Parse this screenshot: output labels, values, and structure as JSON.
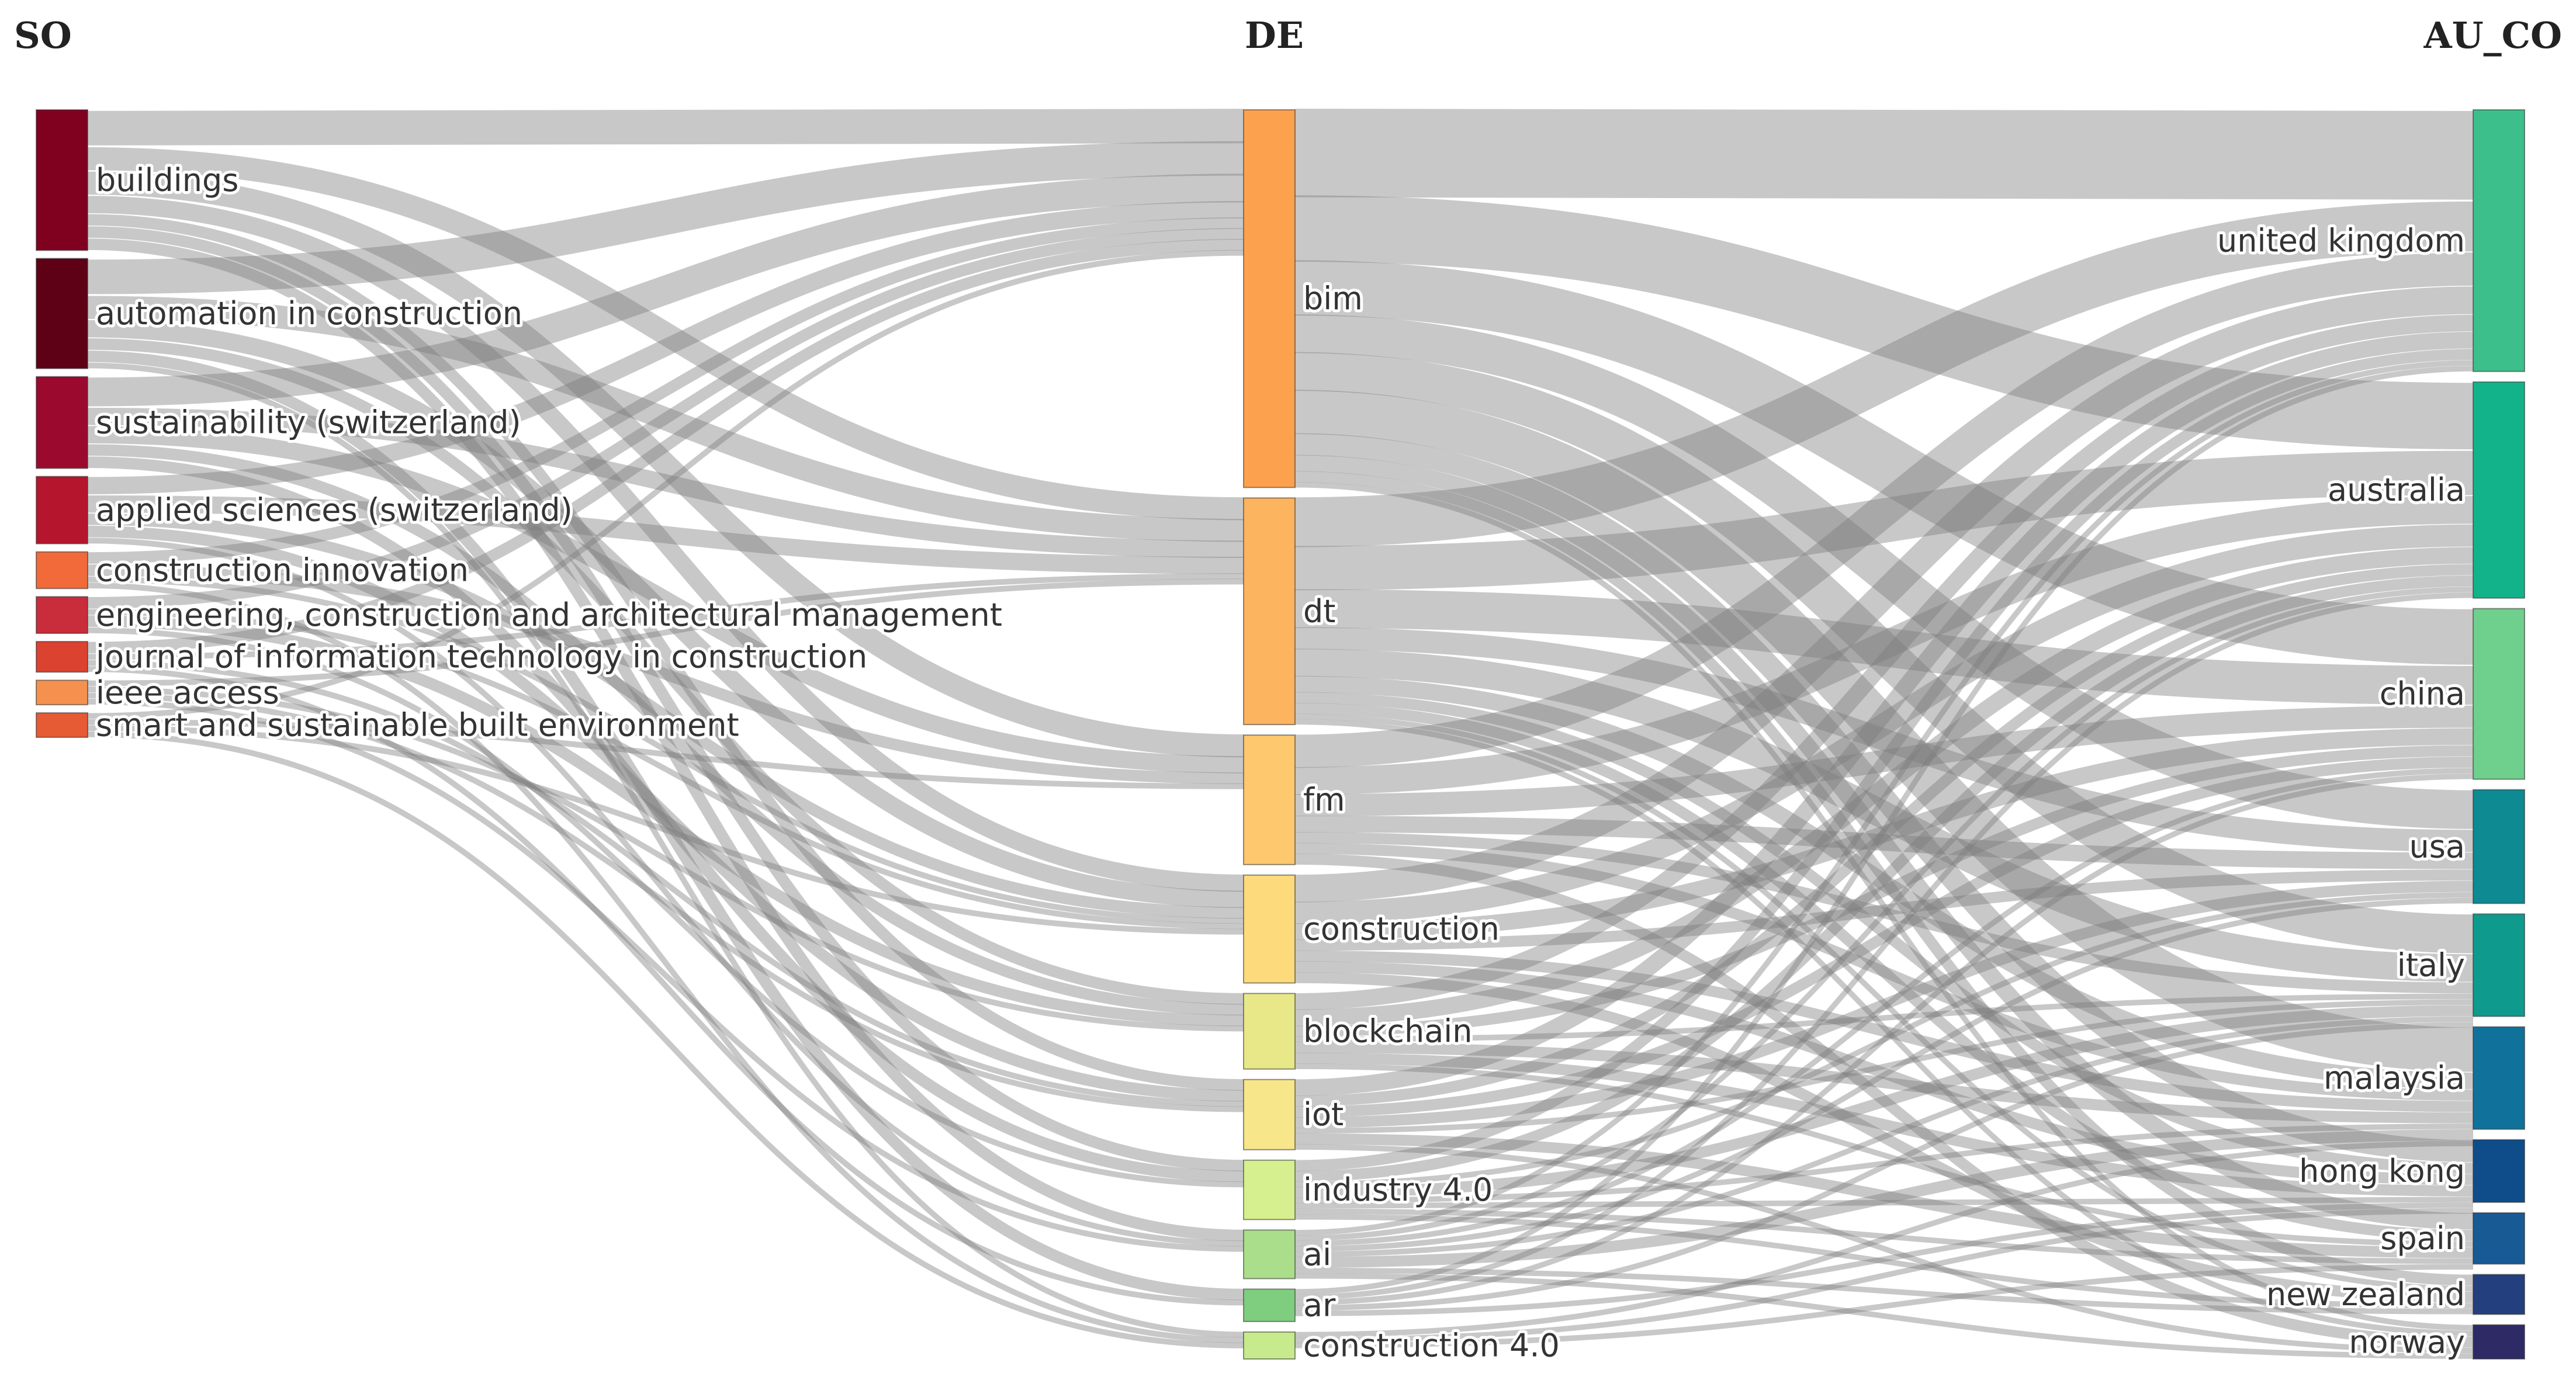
{
  "chart_data": {
    "type": "sankey",
    "columns": [
      {
        "key": "SO",
        "title": "SO",
        "label_side": "right"
      },
      {
        "key": "DE",
        "title": "DE",
        "label_side": "right"
      },
      {
        "key": "AU_CO",
        "title": "AU_CO",
        "label_side": "left"
      }
    ],
    "nodes": {
      "SO": [
        {
          "name": "buildings",
          "value": 23,
          "color": "#800020"
        },
        {
          "name": "automation in construction",
          "value": 18,
          "color": "#5e0016"
        },
        {
          "name": "sustainability (switzerland)",
          "value": 15,
          "color": "#9b0a2e"
        },
        {
          "name": "applied sciences (switzerland)",
          "value": 11,
          "color": "#b5162e"
        },
        {
          "name": "construction innovation",
          "value": 6,
          "color": "#f26a3a"
        },
        {
          "name": "engineering, construction and architectural management",
          "value": 6,
          "color": "#c92c3a"
        },
        {
          "name": "journal of information technology in construction",
          "value": 5,
          "color": "#db4230"
        },
        {
          "name": "ieee access",
          "value": 4,
          "color": "#f5914e"
        },
        {
          "name": "smart and sustainable built environment",
          "value": 4,
          "color": "#e65a34"
        }
      ],
      "DE": [
        {
          "name": "bim",
          "value": 70,
          "color": "#fca24e"
        },
        {
          "name": "dt",
          "value": 42,
          "color": "#fdb45e"
        },
        {
          "name": "fm",
          "value": 24,
          "color": "#fdc86e"
        },
        {
          "name": "construction",
          "value": 20,
          "color": "#fddb7c"
        },
        {
          "name": "blockchain",
          "value": 14,
          "color": "#e8e889"
        },
        {
          "name": "iot",
          "value": 13,
          "color": "#f7e68a"
        },
        {
          "name": "industry 4.0",
          "value": 11,
          "color": "#d7f08f"
        },
        {
          "name": "ai",
          "value": 9,
          "color": "#abde8b"
        },
        {
          "name": "ar",
          "value": 6,
          "color": "#7fce7f"
        },
        {
          "name": "construction 4.0",
          "value": 5,
          "color": "#c6ea8c"
        }
      ],
      "AU_CO": [
        {
          "name": "united kingdom",
          "value": 46,
          "color": "#3cbf8a"
        },
        {
          "name": "australia",
          "value": 38,
          "color": "#12b38a"
        },
        {
          "name": "china",
          "value": 30,
          "color": "#6fcf8c"
        },
        {
          "name": "usa",
          "value": 20,
          "color": "#0d8a92"
        },
        {
          "name": "italy",
          "value": 18,
          "color": "#0f9a8e"
        },
        {
          "name": "malaysia",
          "value": 18,
          "color": "#10729a"
        },
        {
          "name": "hong kong",
          "value": 11,
          "color": "#0e4d8a"
        },
        {
          "name": "spain",
          "value": 9,
          "color": "#175a94"
        },
        {
          "name": "new zealand",
          "value": 7,
          "color": "#243f7d"
        },
        {
          "name": "norway",
          "value": 6,
          "color": "#2d2a66"
        }
      ]
    },
    "links": [
      {
        "source": "buildings",
        "target": "bim",
        "value": 6
      },
      {
        "source": "buildings",
        "target": "dt",
        "value": 4
      },
      {
        "source": "buildings",
        "target": "fm",
        "value": 4
      },
      {
        "source": "buildings",
        "target": "construction",
        "value": 3
      },
      {
        "source": "buildings",
        "target": "iot",
        "value": 2
      },
      {
        "source": "buildings",
        "target": "industry 4.0",
        "value": 2
      },
      {
        "source": "buildings",
        "target": "ai",
        "value": 2
      },
      {
        "source": "automation in construction",
        "target": "bim",
        "value": 6
      },
      {
        "source": "automation in construction",
        "target": "dt",
        "value": 4
      },
      {
        "source": "automation in construction",
        "target": "construction",
        "value": 3
      },
      {
        "source": "automation in construction",
        "target": "blockchain",
        "value": 2
      },
      {
        "source": "automation in construction",
        "target": "ar",
        "value": 2
      },
      {
        "source": "automation in construction",
        "target": "construction 4.0",
        "value": 1
      },
      {
        "source": "sustainability (switzerland)",
        "target": "bim",
        "value": 5
      },
      {
        "source": "sustainability (switzerland)",
        "target": "dt",
        "value": 3
      },
      {
        "source": "sustainability (switzerland)",
        "target": "fm",
        "value": 3
      },
      {
        "source": "sustainability (switzerland)",
        "target": "blockchain",
        "value": 2
      },
      {
        "source": "sustainability (switzerland)",
        "target": "industry 4.0",
        "value": 2
      },
      {
        "source": "applied sciences (switzerland)",
        "target": "bim",
        "value": 3
      },
      {
        "source": "applied sciences (switzerland)",
        "target": "dt",
        "value": 3
      },
      {
        "source": "applied sciences (switzerland)",
        "target": "construction",
        "value": 2
      },
      {
        "source": "applied sciences (switzerland)",
        "target": "iot",
        "value": 2
      },
      {
        "source": "applied sciences (switzerland)",
        "target": "ai",
        "value": 1
      },
      {
        "source": "construction innovation",
        "target": "bim",
        "value": 2
      },
      {
        "source": "construction innovation",
        "target": "fm",
        "value": 2
      },
      {
        "source": "construction innovation",
        "target": "construction",
        "value": 1
      },
      {
        "source": "construction innovation",
        "target": "construction 4.0",
        "value": 1
      },
      {
        "source": "engineering, construction and architectural management",
        "target": "bim",
        "value": 2
      },
      {
        "source": "engineering, construction and architectural management",
        "target": "blockchain",
        "value": 2
      },
      {
        "source": "engineering, construction and architectural management",
        "target": "construction",
        "value": 1
      },
      {
        "source": "engineering, construction and architectural management",
        "target": "industry 4.0",
        "value": 1
      },
      {
        "source": "journal of information technology in construction",
        "target": "bim",
        "value": 2
      },
      {
        "source": "journal of information technology in construction",
        "target": "dt",
        "value": 1
      },
      {
        "source": "journal of information technology in construction",
        "target": "iot",
        "value": 1
      },
      {
        "source": "journal of information technology in construction",
        "target": "ar",
        "value": 1
      },
      {
        "source": "ieee access",
        "target": "dt",
        "value": 1
      },
      {
        "source": "ieee access",
        "target": "blockchain",
        "value": 1
      },
      {
        "source": "ieee access",
        "target": "iot",
        "value": 1
      },
      {
        "source": "ieee access",
        "target": "ai",
        "value": 1
      },
      {
        "source": "smart and sustainable built environment",
        "target": "bim",
        "value": 1
      },
      {
        "source": "smart and sustainable built environment",
        "target": "fm",
        "value": 1
      },
      {
        "source": "smart and sustainable built environment",
        "target": "construction",
        "value": 1
      },
      {
        "source": "smart and sustainable built environment",
        "target": "construction 4.0",
        "value": 1
      },
      {
        "source": "bim",
        "target": "united kingdom",
        "value": 16
      },
      {
        "source": "bim",
        "target": "australia",
        "value": 12
      },
      {
        "source": "bim",
        "target": "china",
        "value": 10
      },
      {
        "source": "bim",
        "target": "usa",
        "value": 7
      },
      {
        "source": "bim",
        "target": "italy",
        "value": 7
      },
      {
        "source": "bim",
        "target": "malaysia",
        "value": 8
      },
      {
        "source": "bim",
        "target": "hong kong",
        "value": 4
      },
      {
        "source": "bim",
        "target": "spain",
        "value": 3
      },
      {
        "source": "bim",
        "target": "new zealand",
        "value": 2
      },
      {
        "source": "bim",
        "target": "norway",
        "value": 1
      },
      {
        "source": "dt",
        "target": "united kingdom",
        "value": 9
      },
      {
        "source": "dt",
        "target": "australia",
        "value": 8
      },
      {
        "source": "dt",
        "target": "china",
        "value": 7
      },
      {
        "source": "dt",
        "target": "usa",
        "value": 4
      },
      {
        "source": "dt",
        "target": "italy",
        "value": 5
      },
      {
        "source": "dt",
        "target": "malaysia",
        "value": 3
      },
      {
        "source": "dt",
        "target": "hong kong",
        "value": 2
      },
      {
        "source": "dt",
        "target": "spain",
        "value": 2
      },
      {
        "source": "dt",
        "target": "new zealand",
        "value": 1
      },
      {
        "source": "dt",
        "target": "norway",
        "value": 1
      },
      {
        "source": "fm",
        "target": "united kingdom",
        "value": 6
      },
      {
        "source": "fm",
        "target": "australia",
        "value": 5
      },
      {
        "source": "fm",
        "target": "china",
        "value": 4
      },
      {
        "source": "fm",
        "target": "usa",
        "value": 3
      },
      {
        "source": "fm",
        "target": "italy",
        "value": 2
      },
      {
        "source": "fm",
        "target": "malaysia",
        "value": 2
      },
      {
        "source": "fm",
        "target": "norway",
        "value": 2
      },
      {
        "source": "construction",
        "target": "united kingdom",
        "value": 5
      },
      {
        "source": "construction",
        "target": "australia",
        "value": 4
      },
      {
        "source": "construction",
        "target": "china",
        "value": 3
      },
      {
        "source": "construction",
        "target": "usa",
        "value": 2
      },
      {
        "source": "construction",
        "target": "malaysia",
        "value": 2
      },
      {
        "source": "construction",
        "target": "hong kong",
        "value": 2
      },
      {
        "source": "construction",
        "target": "new zealand",
        "value": 2
      },
      {
        "source": "blockchain",
        "target": "united kingdom",
        "value": 3
      },
      {
        "source": "blockchain",
        "target": "australia",
        "value": 3
      },
      {
        "source": "blockchain",
        "target": "china",
        "value": 2
      },
      {
        "source": "blockchain",
        "target": "malaysia",
        "value": 2
      },
      {
        "source": "blockchain",
        "target": "hong kong",
        "value": 2
      },
      {
        "source": "blockchain",
        "target": "spain",
        "value": 1
      },
      {
        "source": "blockchain",
        "target": "italy",
        "value": 1
      },
      {
        "source": "iot",
        "target": "united kingdom",
        "value": 3
      },
      {
        "source": "iot",
        "target": "australia",
        "value": 2
      },
      {
        "source": "iot",
        "target": "china",
        "value": 2
      },
      {
        "source": "iot",
        "target": "usa",
        "value": 2
      },
      {
        "source": "iot",
        "target": "italy",
        "value": 1
      },
      {
        "source": "iot",
        "target": "spain",
        "value": 2
      },
      {
        "source": "iot",
        "target": "norway",
        "value": 1
      },
      {
        "source": "industry 4.0",
        "target": "united kingdom",
        "value": 2
      },
      {
        "source": "industry 4.0",
        "target": "australia",
        "value": 2
      },
      {
        "source": "industry 4.0",
        "target": "italy",
        "value": 2
      },
      {
        "source": "industry 4.0",
        "target": "malaysia",
        "value": 1
      },
      {
        "source": "industry 4.0",
        "target": "usa",
        "value": 1
      },
      {
        "source": "industry 4.0",
        "target": "new zealand",
        "value": 1
      },
      {
        "source": "industry 4.0",
        "target": "spain",
        "value": 1
      },
      {
        "source": "industry 4.0",
        "target": "hong kong",
        "value": 1
      },
      {
        "source": "ai",
        "target": "united kingdom",
        "value": 1
      },
      {
        "source": "ai",
        "target": "australia",
        "value": 1
      },
      {
        "source": "ai",
        "target": "china",
        "value": 1
      },
      {
        "source": "ai",
        "target": "usa",
        "value": 1
      },
      {
        "source": "ai",
        "target": "malaysia",
        "value": 2
      },
      {
        "source": "ai",
        "target": "new zealand",
        "value": 1
      },
      {
        "source": "ai",
        "target": "norway",
        "value": 1
      },
      {
        "source": "ai",
        "target": "italy",
        "value": 1
      },
      {
        "source": "ar",
        "target": "australia",
        "value": 1
      },
      {
        "source": "ar",
        "target": "china",
        "value": 1
      },
      {
        "source": "ar",
        "target": "hong kong",
        "value": 1
      },
      {
        "source": "ar",
        "target": "italy",
        "value": 1
      },
      {
        "source": "ar",
        "target": "united kingdom",
        "value": 1
      },
      {
        "source": "construction 4.0",
        "target": "malaysia",
        "value": 1
      },
      {
        "source": "construction 4.0",
        "target": "spain",
        "value": 1
      },
      {
        "source": "construction 4.0",
        "target": "hong kong",
        "value": 1
      }
    ]
  }
}
